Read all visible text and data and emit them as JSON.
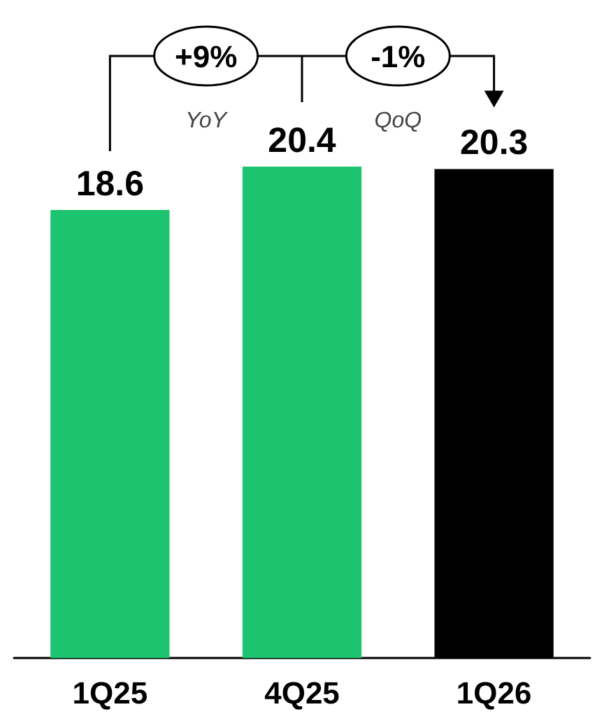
{
  "chart_data": {
    "type": "bar",
    "categories": [
      "1Q25",
      "4Q25",
      "1Q26"
    ],
    "values": [
      18.6,
      20.4,
      20.3
    ],
    "colors": [
      "#1dc46f",
      "#1dc46f",
      "#000000"
    ],
    "data_labels": true,
    "annotations": [
      "+9%",
      "YoY",
      "-1%",
      "QoQ"
    ]
  }
}
